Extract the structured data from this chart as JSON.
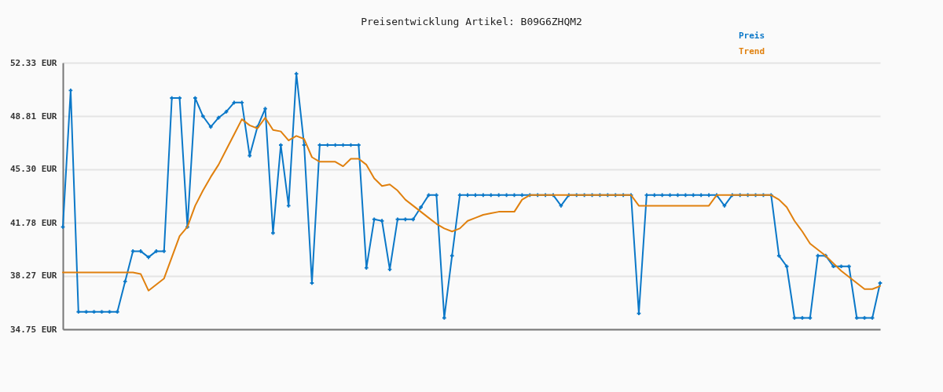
{
  "chart_data": {
    "type": "line",
    "title": "Preisentwicklung Artikel: B09G6ZHQM2",
    "categories": [
      null,
      null,
      null,
      null,
      null,
      null,
      null,
      null,
      null,
      null,
      null,
      null,
      null,
      null,
      null,
      null,
      null,
      null,
      null,
      null,
      null,
      null,
      null,
      null,
      null,
      null,
      null,
      null,
      null,
      null,
      null,
      null,
      null,
      null,
      null,
      null,
      null,
      null,
      null,
      null,
      null,
      null,
      null,
      null,
      null,
      null,
      null,
      null,
      null,
      null,
      null,
      null,
      null,
      null,
      null,
      null,
      null,
      null,
      null,
      null,
      null,
      null,
      null,
      null,
      null,
      null,
      null,
      null,
      null,
      null,
      null,
      null,
      null,
      null,
      null,
      null,
      null,
      null,
      null,
      null,
      null,
      null,
      null,
      null,
      null,
      null,
      null,
      null,
      null,
      null,
      null,
      null,
      null,
      null,
      null,
      null,
      null,
      null,
      null,
      null,
      null,
      null,
      null,
      null,
      null,
      null
    ],
    "series": [
      {
        "name": "Preis",
        "color": "#0b78c8",
        "marker": "cross",
        "values": [
          41.5,
          50.5,
          35.9,
          35.9,
          35.9,
          35.9,
          35.9,
          35.9,
          37.9,
          39.9,
          39.9,
          39.5,
          39.9,
          39.9,
          50.0,
          50.0,
          41.5,
          50.0,
          48.8,
          48.1,
          48.7,
          49.1,
          49.7,
          49.7,
          46.2,
          48.1,
          49.3,
          41.1,
          46.9,
          42.9,
          51.6,
          46.9,
          37.8,
          46.9,
          46.9,
          46.9,
          46.9,
          46.9,
          46.9,
          38.8,
          42.0,
          41.9,
          38.7,
          42.0,
          42.0,
          42.0,
          42.8,
          43.6,
          43.6,
          35.5,
          39.6,
          43.6,
          43.6,
          43.6,
          43.6,
          43.6,
          43.6,
          43.6,
          43.6,
          43.6,
          43.6,
          43.6,
          43.6,
          43.6,
          42.9,
          43.6,
          43.6,
          43.6,
          43.6,
          43.6,
          43.6,
          43.6,
          43.6,
          43.6,
          35.8,
          43.6,
          43.6,
          43.6,
          43.6,
          43.6,
          43.6,
          43.6,
          43.6,
          43.6,
          43.6,
          42.9,
          43.6,
          43.6,
          43.6,
          43.6,
          43.6,
          43.6,
          39.6,
          38.9,
          35.5,
          35.5,
          35.5,
          39.6,
          39.6,
          38.9,
          38.9,
          38.9,
          35.5,
          35.5,
          35.5,
          37.8
        ]
      },
      {
        "name": "Trend",
        "color": "#e0800e",
        "marker": "none",
        "values": [
          38.5,
          38.5,
          38.5,
          38.5,
          38.5,
          38.5,
          38.5,
          38.5,
          38.5,
          38.5,
          38.4,
          37.3,
          37.7,
          38.1,
          39.5,
          40.9,
          41.5,
          42.9,
          43.9,
          44.8,
          45.6,
          46.6,
          47.6,
          48.6,
          48.2,
          48.0,
          48.7,
          47.9,
          47.8,
          47.2,
          47.5,
          47.3,
          46.1,
          45.8,
          45.8,
          45.8,
          45.5,
          46.0,
          46.0,
          45.6,
          44.7,
          44.2,
          44.3,
          43.9,
          43.3,
          42.9,
          42.5,
          42.1,
          41.7,
          41.4,
          41.2,
          41.4,
          41.9,
          42.1,
          42.3,
          42.4,
          42.5,
          42.5,
          42.5,
          43.3,
          43.6,
          43.6,
          43.6,
          43.6,
          43.6,
          43.6,
          43.6,
          43.6,
          43.6,
          43.6,
          43.6,
          43.6,
          43.6,
          43.6,
          42.9,
          42.9,
          42.9,
          42.9,
          42.9,
          42.9,
          42.9,
          42.9,
          42.9,
          42.9,
          43.6,
          43.6,
          43.6,
          43.6,
          43.6,
          43.6,
          43.6,
          43.6,
          43.3,
          42.8,
          41.9,
          41.2,
          40.4,
          40.0,
          39.6,
          39.1,
          38.6,
          38.2,
          37.8,
          37.4,
          37.4,
          37.6
        ]
      }
    ],
    "ylim": [
      34.75,
      52.33
    ],
    "yticks": [
      {
        "value": 34.75,
        "label": "34.75 EUR"
      },
      {
        "value": 38.27,
        "label": "38.27 EUR"
      },
      {
        "value": 41.78,
        "label": "41.78 EUR"
      },
      {
        "value": 45.3,
        "label": "45.30 EUR"
      },
      {
        "value": 48.81,
        "label": "48.81 EUR"
      },
      {
        "value": 52.33,
        "label": "52.33 EUR"
      }
    ],
    "grid": "y",
    "legend": "top right",
    "tick_labels": "y"
  }
}
